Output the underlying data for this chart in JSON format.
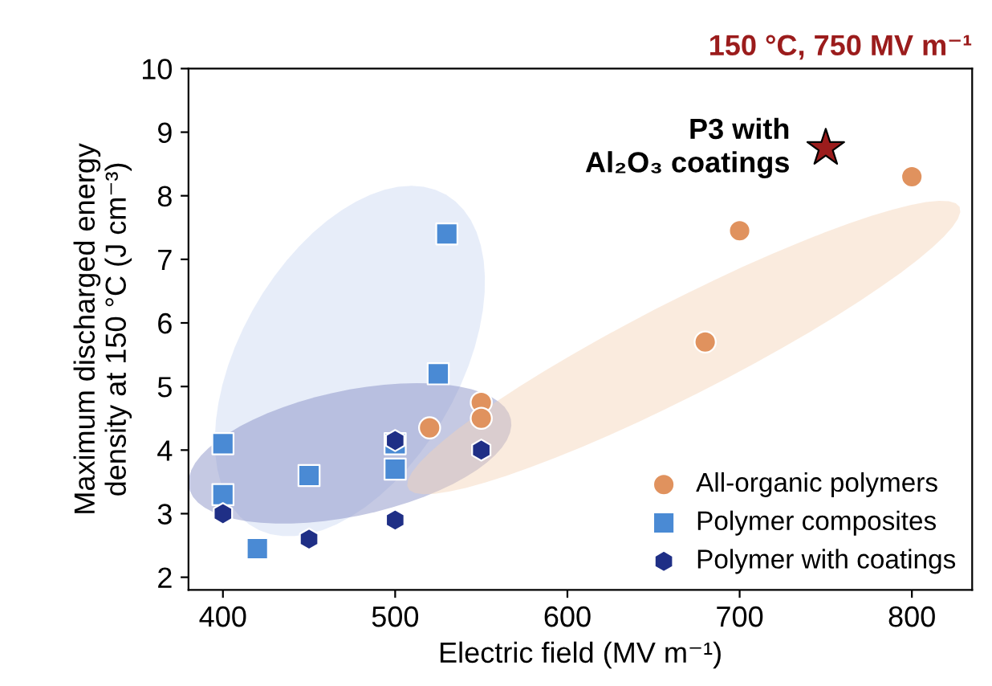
{
  "chart_data": {
    "type": "scatter",
    "title": "150 °C, 750 MV m⁻¹",
    "xlabel": "Electric field (MV m⁻¹)",
    "ylabel": "Maximum discharged energy\ndensity at 150 °C (J cm⁻³)",
    "xlim": [
      380,
      835
    ],
    "xticks": [
      400,
      500,
      600,
      700,
      800
    ],
    "ylim": [
      1.8,
      10
    ],
    "yticks": [
      2,
      3,
      4,
      5,
      6,
      7,
      8,
      9,
      10
    ],
    "grid": false,
    "legend": "bottom right",
    "series": [
      {
        "name": "All-organic polymers",
        "color": "#e0925e",
        "marker": "circle",
        "x": [
          520,
          550,
          550,
          680,
          700,
          800
        ],
        "values": [
          4.35,
          4.75,
          4.5,
          5.7,
          7.45,
          8.3
        ]
      },
      {
        "name": "Polymer composites",
        "color": "#4a8ad4",
        "marker": "square",
        "x": [
          400,
          400,
          420,
          450,
          500,
          500,
          525,
          530
        ],
        "values": [
          4.1,
          3.3,
          2.45,
          3.6,
          4.1,
          3.7,
          5.2,
          7.4
        ]
      },
      {
        "name": "Polymer with coatings",
        "color": "#1f2f86",
        "x": [
          400,
          450,
          500,
          500,
          550
        ],
        "values": [
          3.0,
          2.6,
          4.15,
          2.9,
          4.0
        ]
      },
      {
        "color": "#9b1c1c",
        "marker": "star",
        "x": [
          750
        ],
        "values": [
          8.75
        ]
      }
    ],
    "annotations": [
      {
        "text": "P3 with\nAl₂O₃ coatings",
        "x": 750,
        "y": 8.75
      }
    ]
  }
}
